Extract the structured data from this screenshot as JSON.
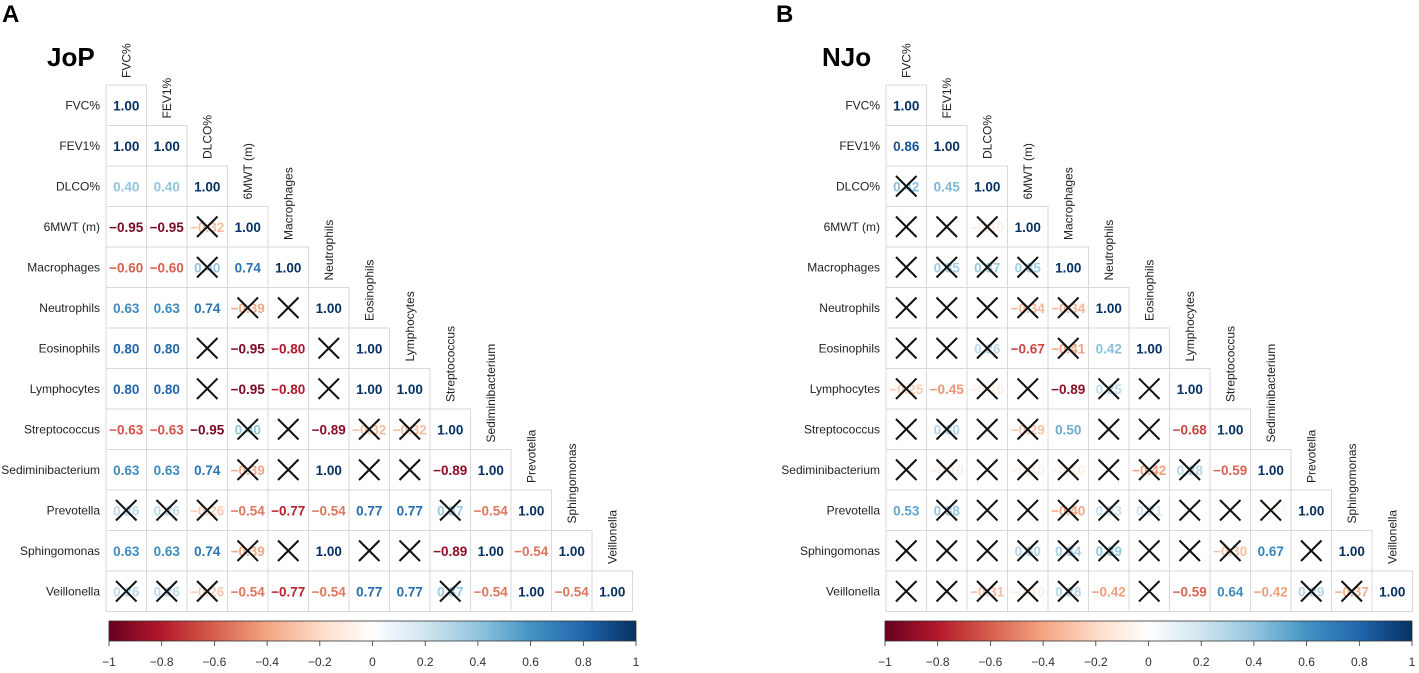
{
  "chart_data": [
    {
      "type": "heatmap",
      "panel_letter": "A",
      "title": "JoP",
      "variables": [
        "FVC%",
        "FEV1%",
        "DLCO%",
        "6MWT (m)",
        "Macrophages",
        "Neutrophils",
        "Eosinophils",
        "Lymphocytes",
        "Streptococcus",
        "Sediminibacterium",
        "Prevotella",
        "Sphingomonas",
        "Veillonella"
      ],
      "matrix": [
        [
          1.0
        ],
        [
          1.0,
          1.0
        ],
        [
          0.4,
          0.4,
          1.0
        ],
        [
          -0.95,
          -0.95,
          -0.32,
          1.0
        ],
        [
          -0.6,
          -0.6,
          0.4,
          0.74,
          1.0
        ],
        [
          0.63,
          0.63,
          0.74,
          -0.39,
          0.11,
          1.0
        ],
        [
          0.8,
          0.8,
          0.2,
          -0.95,
          -0.8,
          0.2,
          1.0
        ],
        [
          0.8,
          0.8,
          0.2,
          -0.95,
          -0.8,
          0.2,
          1.0,
          1.0
        ],
        [
          -0.63,
          -0.63,
          -0.95,
          0.4,
          -0.11,
          -0.89,
          -0.32,
          -0.32,
          1.0
        ],
        [
          0.63,
          0.63,
          0.74,
          -0.39,
          0.11,
          1.0,
          0.2,
          0.2,
          -0.89,
          1.0
        ],
        [
          0.26,
          0.26,
          -0.26,
          -0.54,
          -0.77,
          -0.54,
          0.77,
          0.77,
          0.37,
          -0.54,
          1.0
        ],
        [
          0.63,
          0.63,
          0.74,
          -0.39,
          0.11,
          1.0,
          0.2,
          0.2,
          -0.89,
          1.0,
          -0.54,
          1.0
        ],
        [
          0.26,
          0.26,
          -0.26,
          -0.54,
          -0.77,
          -0.54,
          0.77,
          0.77,
          0.37,
          -0.54,
          1.0,
          -0.54,
          1.0
        ]
      ],
      "labels": [
        [
          "1.00"
        ],
        [
          "1.00",
          "1.00"
        ],
        [
          "0.40",
          "0.40",
          "1.00"
        ],
        [
          "−0.95",
          "−0.95",
          "−0.32",
          "1.00"
        ],
        [
          "−0.60",
          "−0.60",
          "0.40",
          "0.74",
          "1.00"
        ],
        [
          "0.63",
          "0.63",
          "0.74",
          "−0.39",
          "",
          "1.00"
        ],
        [
          "0.80",
          "0.80",
          "",
          "−0.95",
          "−0.80",
          "",
          "1.00"
        ],
        [
          "0.80",
          "0.80",
          "",
          "−0.95",
          "−0.80",
          "",
          "1.00",
          "1.00"
        ],
        [
          "−0.63",
          "−0.63",
          "−0.95",
          "0.40",
          "",
          "−0.89",
          "−0.32",
          "−0.32",
          "1.00"
        ],
        [
          "0.63",
          "0.63",
          "0.74",
          "−0.39",
          "",
          "1.00",
          "",
          "",
          "−0.89",
          "1.00"
        ],
        [
          "0.26",
          "0.26",
          "−0.26",
          "−0.54",
          "−0.77",
          "−0.54",
          "0.77",
          "0.77",
          "0.37",
          "−0.54",
          "1.00"
        ],
        [
          "0.63",
          "0.63",
          "0.74",
          "−0.39",
          "",
          "1.00",
          "",
          "",
          "−0.89",
          "1.00",
          "−0.54",
          "1.00"
        ],
        [
          "0.26",
          "0.26",
          "−0.26",
          "−0.54",
          "−0.77",
          "−0.54",
          "0.77",
          "0.77",
          "0.37",
          "−0.54",
          "1.00",
          "−0.54",
          "1.00"
        ]
      ],
      "nonsignificant": [
        [
          0
        ],
        [
          0,
          0
        ],
        [
          0,
          0,
          0
        ],
        [
          0,
          0,
          1,
          0
        ],
        [
          0,
          0,
          1,
          0,
          0
        ],
        [
          0,
          0,
          0,
          1,
          1,
          0
        ],
        [
          0,
          0,
          1,
          0,
          0,
          1,
          0
        ],
        [
          0,
          0,
          1,
          0,
          0,
          1,
          0,
          0
        ],
        [
          0,
          0,
          0,
          1,
          1,
          0,
          1,
          1,
          0
        ],
        [
          0,
          0,
          0,
          1,
          1,
          0,
          1,
          1,
          0,
          0
        ],
        [
          1,
          1,
          1,
          0,
          0,
          0,
          0,
          0,
          1,
          0,
          0
        ],
        [
          0,
          0,
          0,
          1,
          1,
          0,
          1,
          1,
          0,
          0,
          0,
          0
        ],
        [
          1,
          1,
          1,
          0,
          0,
          0,
          0,
          0,
          1,
          0,
          0,
          0,
          0
        ]
      ],
      "colorbar": {
        "min": -1,
        "max": 1,
        "ticks": [
          "−1",
          "−0.8",
          "−0.6",
          "−0.4",
          "−0.2",
          "0",
          "0.2",
          "0.4",
          "0.6",
          "0.8",
          "1"
        ]
      }
    },
    {
      "type": "heatmap",
      "panel_letter": "B",
      "title": "NJo",
      "variables": [
        "FVC%",
        "FEV1%",
        "DLCO%",
        "6MWT (m)",
        "Macrophages",
        "Neutrophils",
        "Eosinophils",
        "Lymphocytes",
        "Streptococcus",
        "Sediminibacterium",
        "Prevotella",
        "Sphingomonas",
        "Veillonella"
      ],
      "matrix": [
        [
          1.0
        ],
        [
          0.86,
          1.0
        ],
        [
          0.42,
          0.45,
          1.0
        ],
        [
          0.05,
          0.05,
          -0.1,
          1.0
        ],
        [
          0.1,
          0.35,
          0.37,
          0.35,
          1.0
        ],
        [
          0.05,
          0.05,
          0.05,
          -0.34,
          -0.34,
          1.0
        ],
        [
          0.05,
          0.05,
          0.26,
          -0.67,
          -0.41,
          0.42,
          1.0
        ],
        [
          -0.25,
          -0.45,
          -0.1,
          0.05,
          -0.89,
          0.25,
          -0.05,
          1.0
        ],
        [
          0.05,
          0.3,
          0.05,
          -0.29,
          0.5,
          0.05,
          0.05,
          -0.68,
          1.0
        ],
        [
          0.05,
          -0.1,
          0.05,
          -0.1,
          -0.1,
          0.05,
          -0.42,
          0.28,
          -0.59,
          1.0
        ],
        [
          0.53,
          0.38,
          0.05,
          0.05,
          -0.4,
          0.23,
          0.21,
          0.05,
          0.05,
          -0.05,
          1.0
        ],
        [
          0.05,
          0.05,
          0.05,
          0.3,
          0.34,
          0.39,
          0.05,
          0.05,
          -0.3,
          0.67,
          0.05,
          1.0
        ],
        [
          0.05,
          0.05,
          -0.31,
          -0.1,
          0.28,
          -0.42,
          0.05,
          -0.59,
          0.64,
          -0.42,
          0.29,
          -0.37,
          1.0
        ]
      ],
      "labels": [
        [
          "1.00"
        ],
        [
          "0.86",
          "1.00"
        ],
        [
          "0.42",
          "0.45",
          "1.00"
        ],
        [
          "",
          "",
          "−0.10",
          "1.00"
        ],
        [
          "",
          "0.35",
          "0.37",
          "0.35",
          "1.00"
        ],
        [
          "",
          "",
          "",
          "−0.34",
          "−0.34",
          "1.00"
        ],
        [
          "",
          "",
          "0.26",
          "−0.67",
          "−0.41",
          "0.42",
          "1.00"
        ],
        [
          "−0.25",
          "−0.45",
          "−0.10",
          "",
          "−0.89",
          "0.25",
          "",
          "1.00"
        ],
        [
          "",
          "0.30",
          "",
          "−0.29",
          "0.50",
          "",
          "",
          "−0.68",
          "1.00"
        ],
        [
          "",
          "−0.10",
          "",
          "−0.10",
          "−0.10",
          "",
          "−0.42",
          "0.28",
          "−0.59",
          "1.00"
        ],
        [
          "0.53",
          "0.38",
          "",
          "",
          "−0.40",
          "0.23",
          "0.21",
          "",
          "",
          "−0.05",
          "1.00"
        ],
        [
          "",
          "",
          "",
          "0.30",
          "0.34",
          "0.39",
          "",
          "",
          "−0.30",
          "0.67",
          "",
          "1.00"
        ],
        [
          "",
          "",
          "−0.31",
          "−0.10",
          "0.28",
          "−0.42",
          "",
          "−0.59",
          "0.64",
          "−0.42",
          "0.29",
          "−0.37",
          "1.00"
        ]
      ],
      "nonsignificant": [
        [
          0
        ],
        [
          0,
          0
        ],
        [
          1,
          0,
          0
        ],
        [
          1,
          1,
          1,
          0
        ],
        [
          1,
          1,
          1,
          1,
          0
        ],
        [
          1,
          1,
          1,
          1,
          1,
          0
        ],
        [
          1,
          1,
          1,
          0,
          1,
          0,
          0
        ],
        [
          1,
          0,
          1,
          1,
          0,
          1,
          1,
          0
        ],
        [
          1,
          1,
          1,
          1,
          0,
          1,
          1,
          0,
          0
        ],
        [
          1,
          1,
          1,
          1,
          1,
          1,
          1,
          1,
          0,
          0
        ],
        [
          0,
          1,
          1,
          1,
          1,
          1,
          1,
          1,
          1,
          1,
          0
        ],
        [
          1,
          1,
          1,
          1,
          1,
          1,
          1,
          1,
          1,
          0,
          1,
          0
        ],
        [
          1,
          1,
          1,
          1,
          1,
          0,
          1,
          0,
          0,
          0,
          1,
          1,
          0
        ]
      ],
      "colorbar": {
        "min": -1,
        "max": 1,
        "ticks": [
          "−1",
          "−0.8",
          "−0.6",
          "−0.4",
          "−0.2",
          "0",
          "0.2",
          "0.4",
          "0.6",
          "0.8",
          "1"
        ]
      }
    }
  ]
}
